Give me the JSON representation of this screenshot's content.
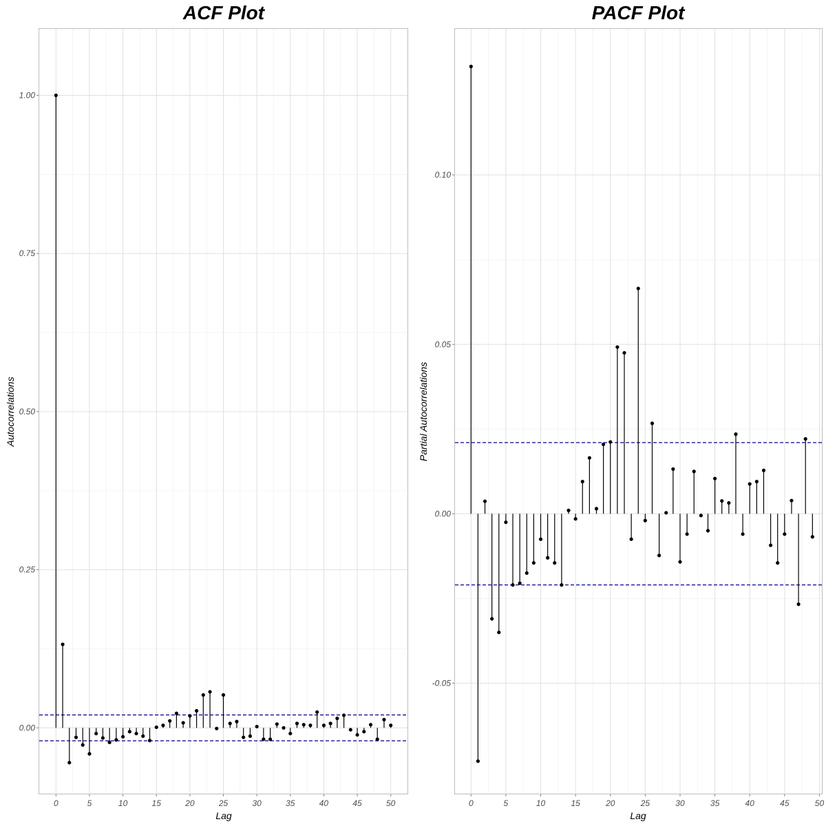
{
  "chart_data": [
    {
      "type": "scatter",
      "subtype": "lollipop",
      "title": "ACF Plot",
      "xlabel": "Lag",
      "ylabel": "Autocorrelations",
      "xlim": [
        -2.5,
        52.5
      ],
      "ylim": [
        -0.104,
        1.105
      ],
      "x_ticks": [
        0,
        5,
        10,
        15,
        20,
        25,
        30,
        35,
        40,
        45,
        50
      ],
      "y_ticks": [
        0.0,
        0.25,
        0.5,
        0.75,
        1.0
      ],
      "y_tick_labels": [
        "0.00",
        "0.25",
        "0.50",
        "0.75",
        "1.00"
      ],
      "grid": true,
      "confidence_band": [
        -0.0205,
        0.0205
      ],
      "x": [
        0,
        1,
        2,
        3,
        4,
        5,
        6,
        7,
        8,
        9,
        10,
        11,
        12,
        13,
        14,
        15,
        16,
        17,
        18,
        19,
        20,
        21,
        22,
        23,
        24,
        25,
        26,
        27,
        28,
        29,
        30,
        31,
        32,
        33,
        34,
        35,
        36,
        37,
        38,
        39,
        40,
        41,
        42,
        43,
        44,
        45,
        46,
        47,
        48,
        49,
        50
      ],
      "values": [
        1.0,
        0.132,
        -0.055,
        -0.015,
        -0.027,
        -0.041,
        -0.009,
        -0.016,
        -0.023,
        -0.019,
        -0.014,
        -0.006,
        -0.009,
        -0.013,
        -0.02,
        0.001,
        0.004,
        0.011,
        0.023,
        0.008,
        0.019,
        0.027,
        0.052,
        0.057,
        -0.001,
        0.052,
        0.007,
        0.01,
        -0.015,
        -0.013,
        0.002,
        -0.018,
        -0.018,
        0.006,
        0.0,
        -0.009,
        0.007,
        0.005,
        0.004,
        0.025,
        0.004,
        0.007,
        0.015,
        0.02,
        -0.003,
        -0.011,
        -0.006,
        0.005,
        -0.018,
        0.013,
        0.004
      ]
    },
    {
      "type": "scatter",
      "subtype": "lollipop",
      "title": "PACF Plot",
      "xlabel": "Lag",
      "ylabel": "Partial Autocorrelations",
      "xlim": [
        -2.3,
        50.35
      ],
      "ylim": [
        -0.0826,
        0.1431
      ],
      "x_ticks": [
        0,
        5,
        10,
        15,
        20,
        25,
        30,
        35,
        40,
        45,
        50
      ],
      "y_ticks": [
        -0.05,
        0.0,
        0.05,
        0.1
      ],
      "y_tick_labels": [
        "-0.05",
        "0.00",
        "0.05",
        "0.10"
      ],
      "grid": true,
      "confidence_band": [
        -0.021,
        0.021
      ],
      "x": [
        0,
        1,
        2,
        3,
        4,
        5,
        6,
        7,
        8,
        9,
        10,
        11,
        12,
        13,
        14,
        15,
        16,
        17,
        18,
        19,
        20,
        21,
        22,
        23,
        24,
        25,
        26,
        27,
        28,
        29,
        30,
        31,
        32,
        33,
        34,
        35,
        36,
        37,
        38,
        39,
        40,
        41,
        42,
        43,
        44,
        45,
        46,
        47,
        48,
        49
      ],
      "values": [
        0.132,
        -0.073,
        0.0037,
        -0.031,
        -0.035,
        -0.0025,
        -0.021,
        -0.0205,
        -0.0175,
        -0.0145,
        -0.0075,
        -0.013,
        -0.0145,
        -0.021,
        0.001,
        -0.0015,
        0.0095,
        0.0165,
        0.0015,
        0.0205,
        0.0212,
        0.0492,
        0.0475,
        -0.0075,
        0.0665,
        -0.002,
        0.0267,
        -0.0123,
        0.0003,
        0.0132,
        -0.0142,
        -0.006,
        0.0125,
        -0.0005,
        -0.005,
        0.0104,
        0.0038,
        0.0032,
        0.0235,
        -0.006,
        0.0088,
        0.0095,
        0.0128,
        -0.0093,
        -0.0145,
        -0.006,
        0.0039,
        -0.0267,
        0.0221,
        -0.0068
      ]
    }
  ]
}
